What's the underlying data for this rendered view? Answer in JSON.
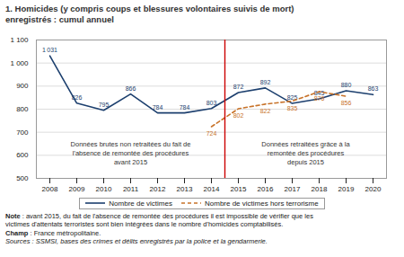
{
  "chart_data": {
    "type": "line",
    "title": "1. Homicides (y compris coups et blessures volontaires suivis de mort)\nenregistrés : cumul annuel",
    "x": [
      2008,
      2009,
      2010,
      2011,
      2012,
      2013,
      2014,
      2015,
      2016,
      2017,
      2018,
      2019,
      2020
    ],
    "xlim": [
      2007.5,
      2020.5
    ],
    "xticks": [
      2008,
      2009,
      2010,
      2011,
      2012,
      2013,
      2014,
      2015,
      2016,
      2017,
      2018,
      2019,
      2020
    ],
    "ylim": [
      500,
      1100
    ],
    "yticks": [
      500,
      600,
      700,
      800,
      900,
      {
        "value": 1000,
        "label": "1 000"
      },
      {
        "value": 1100,
        "label": "1 100"
      }
    ],
    "series": [
      {
        "name": "Nombre de victimes",
        "color": "#1c3f6e",
        "line_style": "solid",
        "values": [
          1031,
          826,
          795,
          866,
          784,
          784,
          803,
          872,
          892,
          825,
          845,
          880,
          863
        ],
        "value_labels": [
          "1 031",
          "826",
          "795",
          "866",
          "784",
          "784",
          "803",
          "872",
          "892",
          "825",
          "845",
          "880",
          "863"
        ]
      },
      {
        "name": "Nombre de victimes hors terrorisme",
        "color": "#c8732a",
        "line_style": "dashed",
        "values": [
          null,
          null,
          null,
          null,
          null,
          null,
          724,
          802,
          822,
          835,
          876,
          856,
          null
        ]
      }
    ],
    "vline": {
      "x": 2014.5,
      "color": "#cc0000"
    },
    "annotations": [
      {
        "text": "Données brutes non retraitées du fait de\nl'absence de remontée des procédures\navant 2015"
      },
      {
        "text": "Données retraitées grâce à la\nremontée des procédures\ndepuis 2015"
      }
    ],
    "notes": [
      "Note : avant 2015, du fait de l'absence de remontée des procédures il est impossible de vérifier que les\nvictimes d'attentats terroristes sont bien intégrées dans le nombre d'homicides comptabilisés.",
      "Champ : France métropolitaine.",
      "Sources : SSMSI, bases des crimes et délits enregistrés par la police et la gendarmerie."
    ],
    "grid": "y",
    "legend": "bottom",
    "data_labels": true
  }
}
